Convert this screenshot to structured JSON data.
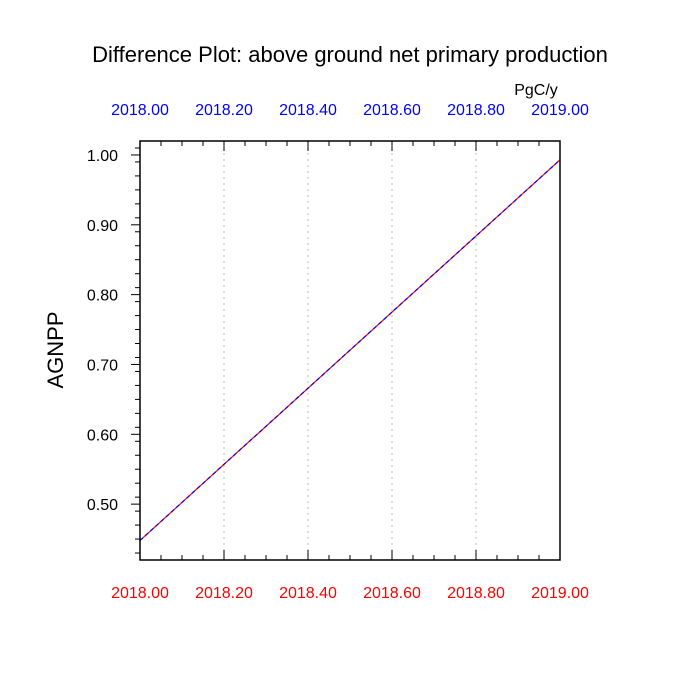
{
  "colors": {
    "bottom_axis_labels": "#ff0000",
    "top_axis_labels": "#0000ff",
    "line_red": "#ff0000",
    "line_blue": "#0000ff",
    "grid": "#c8c8c8",
    "frame": "#000000"
  },
  "chart_data": {
    "type": "line",
    "title": "Difference Plot: above ground net primary production",
    "units": "PgC/y",
    "ylabel": "AGNPP",
    "xlabel": "",
    "xlim": [
      2018.0,
      2019.0
    ],
    "ylim": [
      0.42,
      1.02
    ],
    "grid": "vertical dashed",
    "xticks": [
      "2018.00",
      "2018.20",
      "2018.40",
      "2018.60",
      "2018.80",
      "2019.00"
    ],
    "top_xticks": [
      "2018.00",
      "2018.20",
      "2018.40",
      "2018.60",
      "2018.80",
      "2019.00"
    ],
    "yticks": [
      "0.50",
      "0.60",
      "0.70",
      "0.80",
      "0.90",
      "1.00"
    ],
    "series": [
      {
        "x": [
          2018.0,
          2019.0
        ],
        "y": [
          0.448,
          0.993
        ],
        "color": "#ff0000",
        "style": "solid"
      },
      {
        "x": [
          2018.0,
          2019.0
        ],
        "y": [
          0.448,
          0.993
        ],
        "color": "#0000ff",
        "style": "dashed"
      }
    ]
  }
}
